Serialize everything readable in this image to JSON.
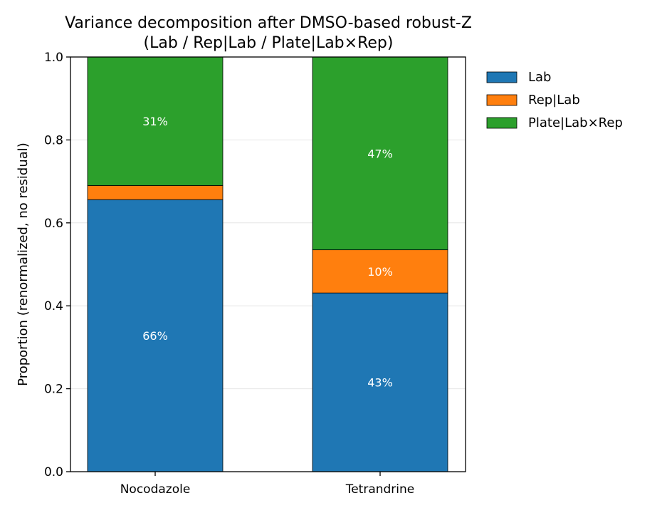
{
  "chart_data": {
    "type": "bar",
    "stacked": true,
    "title_line1": "Variance decomposition after DMSO-based robust-Z",
    "title_line2": "(Lab / Rep|Lab / Plate|Lab×Rep)",
    "xlabel": "",
    "ylabel": "Proportion (renormalized, no residual)",
    "ylim": [
      0,
      1
    ],
    "yticks": [
      "0.0",
      "0.2",
      "0.4",
      "0.6",
      "0.8",
      "1.0"
    ],
    "grid": "horizontal",
    "legend_position": "outside top-right",
    "categories": [
      "Nocodazole",
      "Tetrandrine"
    ],
    "series": [
      {
        "name": "Lab",
        "color": "#1f77b4",
        "values": [
          0.656,
          0.431
        ],
        "labels": [
          "66%",
          "43%"
        ]
      },
      {
        "name": "Rep|Lab",
        "color": "#ff7f0e",
        "values": [
          0.034,
          0.104
        ],
        "labels": [
          "",
          "10%"
        ]
      },
      {
        "name": "Plate|Lab×Rep",
        "color": "#2ca02c",
        "values": [
          0.31,
          0.465
        ],
        "labels": [
          "31%",
          "47%"
        ]
      }
    ]
  }
}
